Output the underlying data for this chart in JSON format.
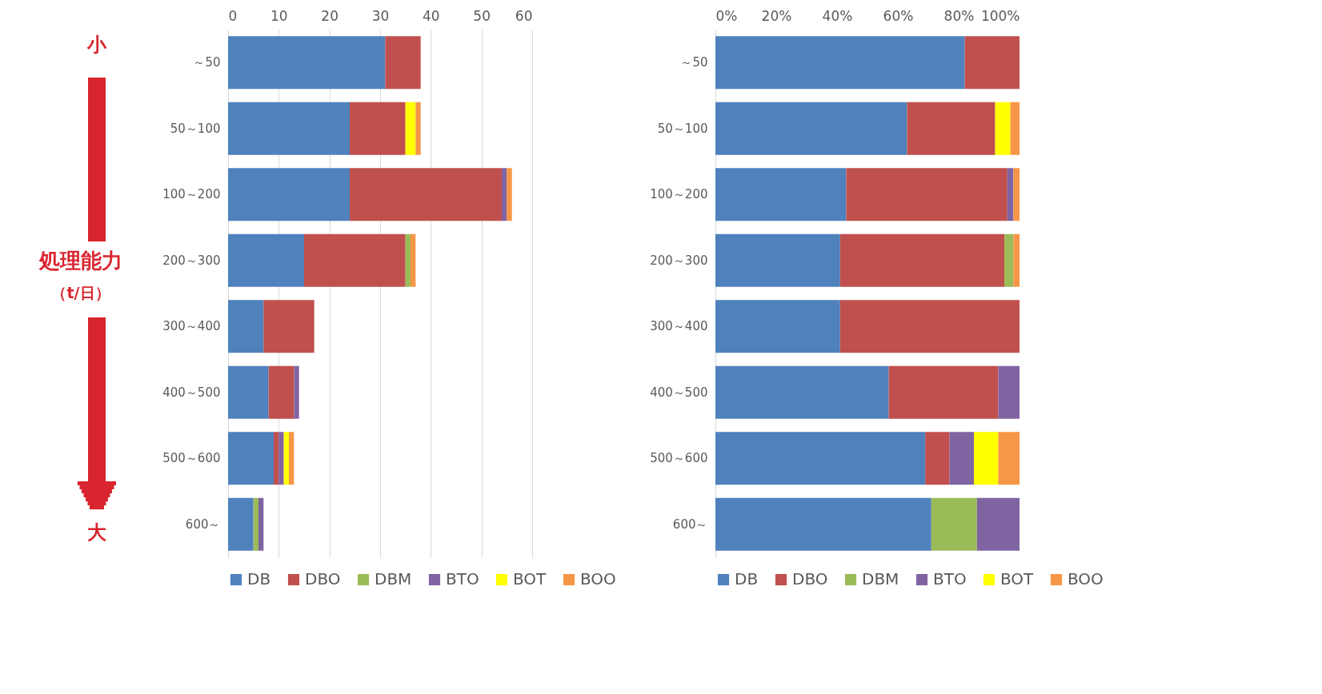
{
  "chart_data": [
    {
      "type": "bar",
      "orientation": "horizontal",
      "stacked": true,
      "categories": [
        "～50",
        "50～100",
        "100～200",
        "200～300",
        "300～400",
        "400～500",
        "500～600",
        "600～"
      ],
      "series": [
        {
          "name": "DB",
          "color": "#4f81bd",
          "values": [
            31,
            24,
            24,
            15,
            7,
            8,
            9,
            5
          ]
        },
        {
          "name": "DBO",
          "color": "#c0504d",
          "values": [
            7,
            11,
            30,
            20,
            10,
            5,
            1,
            0
          ]
        },
        {
          "name": "DBM",
          "color": "#9bbb59",
          "values": [
            0,
            0,
            0,
            1,
            0,
            0,
            0,
            1
          ]
        },
        {
          "name": "BTO",
          "color": "#8064a2",
          "values": [
            0,
            0,
            1,
            0,
            0,
            1,
            1,
            1
          ]
        },
        {
          "name": "BOT",
          "color": "#ffff00",
          "values": [
            0,
            2,
            0,
            0,
            0,
            0,
            1,
            0
          ]
        },
        {
          "name": "BOO",
          "color": "#f79646",
          "values": [
            0,
            1,
            1,
            1,
            0,
            0,
            1,
            0
          ]
        }
      ],
      "xlim": [
        0,
        60
      ],
      "xticks": [
        0,
        10,
        20,
        30,
        40,
        50,
        60
      ],
      "grid": "x",
      "legend": "bottom",
      "annotations": [
        "小",
        "処理能力",
        "（t/日）",
        "大"
      ]
    },
    {
      "type": "bar",
      "orientation": "horizontal",
      "stacked": true,
      "categories": [
        "～50",
        "50～100",
        "100～200",
        "200～300",
        "300～400",
        "400～500",
        "500～600",
        "600～"
      ],
      "series": [
        {
          "name": "DB",
          "color": "#4f81bd",
          "values": [
            82,
            63,
            43,
            41,
            41,
            57,
            69,
            71
          ]
        },
        {
          "name": "DBO",
          "color": "#c0504d",
          "values": [
            18,
            29,
            53,
            54,
            59,
            36,
            8,
            0
          ]
        },
        {
          "name": "DBM",
          "color": "#9bbb59",
          "values": [
            0,
            0,
            0,
            3,
            0,
            0,
            0,
            15
          ]
        },
        {
          "name": "BTO",
          "color": "#8064a2",
          "values": [
            0,
            0,
            2,
            0,
            0,
            7,
            8,
            14
          ]
        },
        {
          "name": "BOT",
          "color": "#ffff00",
          "values": [
            0,
            5,
            0,
            0,
            0,
            0,
            8,
            0
          ]
        },
        {
          "name": "BOO",
          "color": "#f79646",
          "values": [
            0,
            3,
            2,
            2,
            0,
            0,
            7,
            0
          ]
        }
      ],
      "xlim": [
        0,
        100
      ],
      "xticks": [
        {
          "value": 0,
          "label": "0%"
        },
        {
          "value": 20,
          "label": "20%"
        },
        {
          "value": 40,
          "label": "40%"
        },
        {
          "value": 60,
          "label": "60%"
        },
        {
          "value": 80,
          "label": "80%"
        },
        {
          "value": 100,
          "label": "100%"
        }
      ],
      "grid": false,
      "legend": "bottom"
    }
  ]
}
